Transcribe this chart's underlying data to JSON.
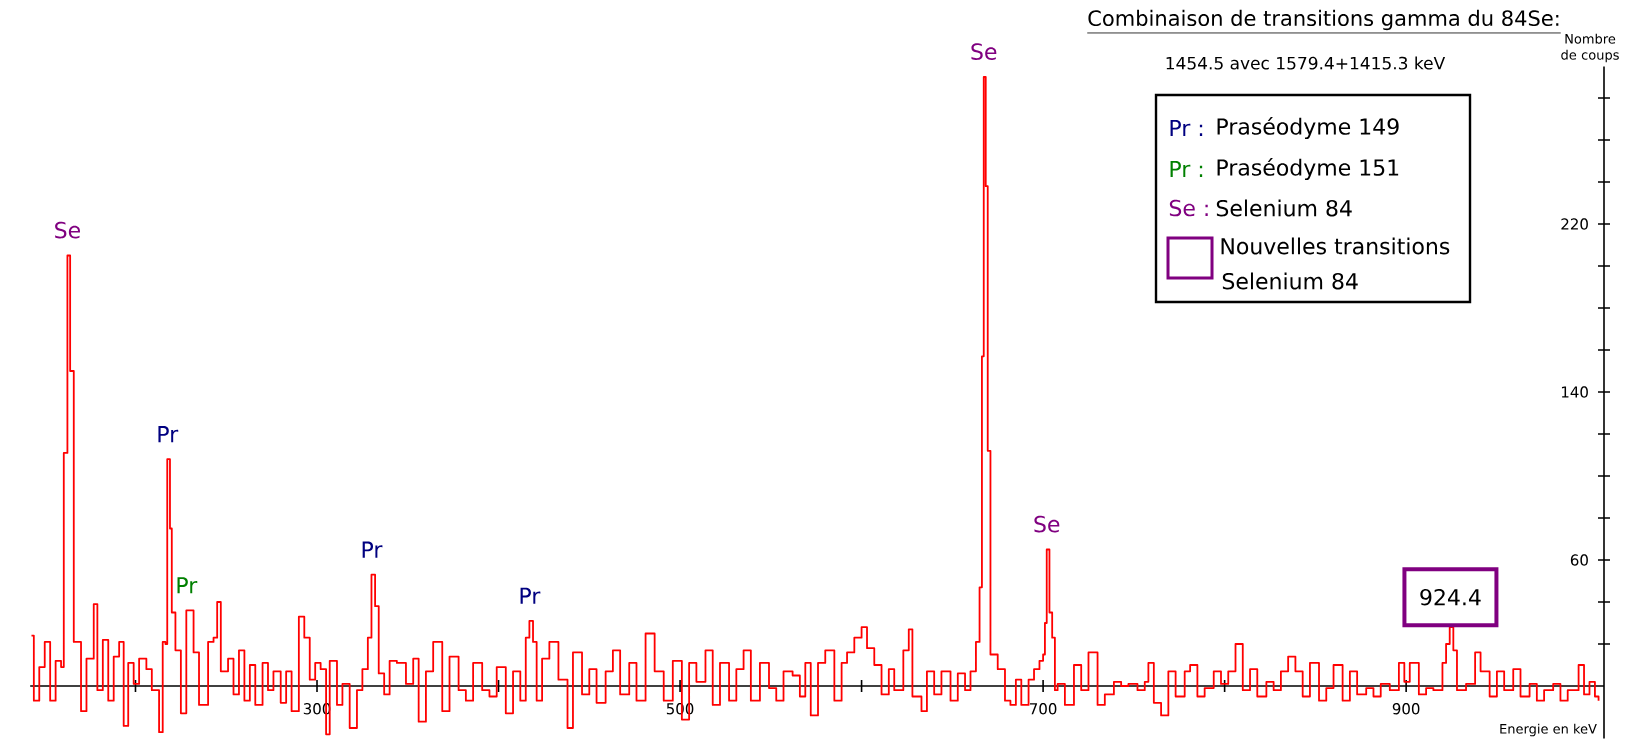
{
  "chart_data": {
    "type": "step",
    "title": "Combinaison de transitions gamma du 84Se:",
    "subtitle": "1454.5 avec 1579.4+1415.3 keV",
    "xlabel": "Energie en keV",
    "ylabel": "Nombre de coups",
    "color": "#ff0000",
    "x": [
      142.7,
      144,
      147,
      150,
      153,
      156,
      159,
      160.5,
      162.5,
      164,
      166,
      170,
      173,
      177,
      179,
      182,
      185,
      188,
      191,
      193.5,
      196,
      199,
      202,
      206,
      209,
      213,
      215,
      216.5,
      217.5,
      219,
      220,
      222,
      225,
      228,
      232,
      235,
      240,
      243,
      245,
      247,
      251,
      254,
      257,
      260,
      263,
      266,
      270,
      273,
      276,
      280,
      283,
      286,
      290,
      293,
      296,
      299,
      302,
      305,
      307,
      311,
      314,
      318,
      322,
      325,
      328,
      330,
      332,
      334,
      337,
      340,
      344,
      349,
      353,
      356,
      360,
      364,
      369,
      373,
      378,
      382,
      386,
      391,
      395,
      399,
      404,
      408,
      412,
      415,
      417,
      419,
      421,
      424,
      428,
      433,
      438,
      441,
      446,
      450,
      454,
      459,
      463,
      467,
      472,
      476,
      481,
      486,
      491,
      496,
      501,
      505,
      509,
      514,
      518,
      522,
      527,
      531,
      535,
      539,
      544,
      549,
      553,
      557,
      562,
      566,
      569,
      572,
      576,
      580,
      585,
      589,
      592,
      596,
      600,
      603,
      607,
      611,
      615,
      618,
      623,
      626,
      628,
      633,
      636,
      640,
      644,
      649,
      653,
      657,
      660,
      663,
      665,
      666.3,
      667.3,
      668.4,
      669.5,
      671,
      675,
      679,
      682,
      685,
      688,
      692,
      695,
      698,
      700,
      701,
      702,
      703.5,
      705,
      706.5,
      708,
      712,
      717,
      721,
      725,
      730,
      734,
      739,
      743,
      747,
      752,
      756,
      758,
      761,
      765,
      769,
      773,
      778,
      781,
      785,
      789,
      794,
      798,
      802,
      806,
      810,
      814,
      818,
      823,
      827,
      831,
      835,
      839,
      843,
      847,
      852,
      856,
      860,
      865,
      869,
      873,
      878,
      882,
      886,
      891,
      896,
      899,
      902,
      907,
      911,
      915,
      920,
      922,
      924,
      926,
      928,
      933,
      938,
      941,
      946,
      950,
      954,
      959,
      963,
      968,
      972,
      976,
      981,
      985,
      989,
      992,
      995,
      998,
      1001,
      1004,
      1006
    ],
    "values": [
      24,
      -7,
      9,
      21,
      -7,
      12,
      9,
      111,
      205,
      150,
      21,
      -12,
      13,
      39,
      -2,
      22,
      -7,
      14,
      21,
      -19,
      11,
      1,
      13,
      8,
      -2,
      -22,
      21,
      20,
      108,
      75,
      35,
      17,
      -13,
      36,
      16,
      -9,
      21,
      23,
      40,
      7,
      13,
      -4,
      17,
      -7,
      10,
      -9,
      11,
      -2,
      7,
      -8,
      7,
      -12,
      33,
      23,
      3,
      11,
      8,
      -23,
      12,
      -9,
      1,
      -20,
      -2,
      8,
      23,
      53,
      38,
      6,
      -4,
      12,
      11,
      1,
      13,
      -17,
      7,
      21,
      -12,
      14,
      -2,
      -7,
      11,
      -2,
      -5,
      9,
      -13,
      7,
      -7,
      23,
      31,
      21,
      -7,
      13,
      21,
      3,
      -20,
      16,
      -4,
      8,
      -8,
      7,
      17,
      -4,
      11,
      -7,
      25,
      7,
      -7,
      12,
      -16,
      11,
      2,
      17,
      -9,
      11,
      -7,
      8,
      17,
      -7,
      11,
      -1,
      -7,
      7,
      5,
      -5,
      11,
      -14,
      11,
      17,
      -7,
      11,
      16,
      23,
      28,
      18,
      10,
      -4,
      8,
      -2,
      17,
      27,
      -5,
      -12,
      7,
      -4,
      7,
      -7,
      6,
      -2,
      7,
      21,
      47,
      157,
      290,
      238,
      112,
      15,
      8,
      -7,
      -9,
      3,
      -9,
      3,
      8,
      12,
      15,
      30,
      65,
      35,
      23,
      -2,
      1,
      -9,
      10,
      -2,
      16,
      -9,
      -4,
      2,
      0,
      1,
      -2,
      2,
      11,
      -8,
      -14,
      7,
      -5,
      7,
      10,
      -5,
      -1,
      7,
      1,
      7,
      20,
      -2,
      8,
      -5,
      2,
      -2,
      7,
      14,
      7,
      -5,
      11,
      -7,
      -1,
      10,
      -7,
      7,
      -4,
      -1,
      -5,
      1,
      -2,
      11,
      2,
      11,
      -4,
      -1,
      -2,
      11,
      20,
      28,
      17,
      -2,
      1,
      16,
      7,
      -5,
      7,
      -2,
      8,
      -5,
      1,
      -7,
      -2,
      1,
      -7,
      -2,
      -2,
      10,
      -4,
      2,
      -5,
      -7
    ],
    "xlim": [
      142,
      1009
    ],
    "ylim": [
      -25,
      295
    ],
    "xticks": [
      {
        "value": 200,
        "label": null
      },
      300,
      {
        "value": 400,
        "label": null
      },
      500,
      {
        "value": 600,
        "label": null
      },
      700,
      {
        "value": 800,
        "label": null
      },
      900
    ],
    "yticks": [
      {
        "value": 20,
        "label": null
      },
      {
        "value": 40,
        "label": null
      },
      60,
      {
        "value": 80,
        "label": null
      },
      {
        "value": 100,
        "label": null
      },
      {
        "value": 120,
        "label": null
      },
      140,
      {
        "value": 160,
        "label": null
      },
      {
        "value": 180,
        "label": null
      },
      {
        "value": 200,
        "label": null
      },
      220,
      {
        "value": 240,
        "label": null
      },
      {
        "value": 260,
        "label": null
      },
      {
        "value": 280,
        "label": null
      }
    ],
    "grid": false,
    "annotations": [
      {
        "text": "Se",
        "x": 162.5,
        "y": 205
      },
      {
        "text": "Pr",
        "x": 217.5,
        "y": 108
      },
      {
        "text": "Pr",
        "x": 228,
        "y": 36
      },
      {
        "text": "Pr",
        "x": 330,
        "y": 53
      },
      {
        "text": "Pr",
        "x": 417,
        "y": 31
      },
      {
        "text": "Se",
        "x": 667.3,
        "y": 290
      },
      {
        "text": "Se",
        "x": 702,
        "y": 65
      },
      {
        "text": "924.4",
        "x": 924.4,
        "y": 28
      },
      "Pr :",
      "Praséodyme 149",
      "Pr :",
      "Praséodyme 151",
      "Se :",
      "Selenium 84",
      "Nouvelles transitions",
      "Selenium 84"
    ]
  }
}
